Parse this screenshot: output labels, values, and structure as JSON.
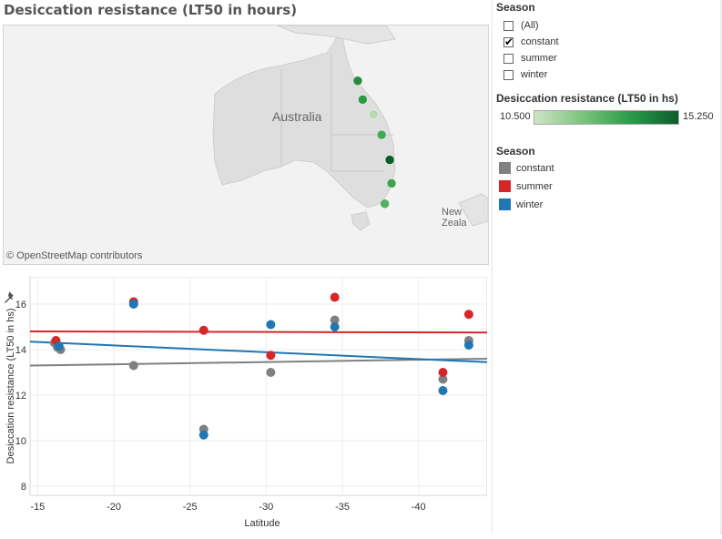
{
  "title": "Desiccation resistance (LT50 in hours)",
  "map": {
    "country_label": "Australia",
    "nz_label": "New Zeala",
    "attribution": "© OpenStreetMap contributors",
    "points": [
      {
        "lat": -16.9,
        "lon": 145.7,
        "color": "#2a8a3e"
      },
      {
        "lat": -19.3,
        "lon": 146.8,
        "color": "#2f9a45"
      },
      {
        "lat": -21.2,
        "lon": 149.2,
        "color": "#b7d9ad"
      },
      {
        "lat": -23.8,
        "lon": 151.0,
        "color": "#43a852"
      },
      {
        "lat": -27.0,
        "lon": 152.8,
        "color": "#0e5a2a"
      },
      {
        "lat": -30.0,
        "lon": 153.2,
        "color": "#3ea34f"
      },
      {
        "lat": -32.6,
        "lon": 151.7,
        "color": "#53b05d"
      }
    ]
  },
  "chart_data": {
    "type": "scatter",
    "xlabel": "Latitude",
    "ylabel": "Desiccation resistance (LT50 in hs)",
    "xlim": [
      -14.5,
      -44.5
    ],
    "ylim": [
      7.6,
      17.2
    ],
    "x_ticks": [
      "-15",
      "-20",
      "-25",
      "-30",
      "-35",
      "-40"
    ],
    "x_tick_values": [
      -15,
      -20,
      -25,
      -30,
      -35,
      -40
    ],
    "y_ticks": [
      "8",
      "10",
      "12",
      "14",
      "16"
    ],
    "y_tick_values": [
      8,
      10,
      12,
      14,
      16
    ],
    "series": [
      {
        "name": "constant",
        "color": "#808080",
        "x": [
          -16.3,
          -16.5,
          -16.1,
          -21.3,
          -25.9,
          -30.3,
          -34.5,
          -41.6,
          -43.3
        ],
        "y": [
          14.1,
          14.0,
          14.3,
          13.3,
          10.5,
          13.0,
          15.3,
          12.7,
          14.4
        ],
        "trend": [
          13.3,
          13.6
        ]
      },
      {
        "name": "summer",
        "color": "#d62728",
        "x": [
          -16.2,
          -21.3,
          -25.9,
          -30.3,
          -34.5,
          -41.6,
          -43.3
        ],
        "y": [
          14.4,
          16.1,
          14.85,
          13.75,
          16.3,
          13.0,
          15.55
        ],
        "trend": [
          14.8,
          14.75
        ]
      },
      {
        "name": "winter",
        "color": "#1f77b4",
        "x": [
          -16.4,
          -21.3,
          -25.9,
          -30.3,
          -34.5,
          -41.6,
          -43.3
        ],
        "y": [
          14.15,
          16.0,
          10.25,
          15.1,
          15.0,
          12.2,
          14.2
        ],
        "trend": [
          14.35,
          13.45
        ]
      }
    ]
  },
  "filter": {
    "title": "Season",
    "items": [
      {
        "label": "(All)",
        "checked": false
      },
      {
        "label": "constant",
        "checked": true
      },
      {
        "label": "summer",
        "checked": false
      },
      {
        "label": "winter",
        "checked": false
      }
    ]
  },
  "color_legend": {
    "title": "Desiccation resistance (LT50 in hs)",
    "min": "10.500",
    "max": "15.250"
  },
  "season_legend": {
    "title": "Season",
    "items": [
      {
        "label": "constant",
        "color": "#808080"
      },
      {
        "label": "summer",
        "color": "#d62728"
      },
      {
        "label": "winter",
        "color": "#1f77b4"
      }
    ]
  },
  "pin_icon": "pin-icon"
}
